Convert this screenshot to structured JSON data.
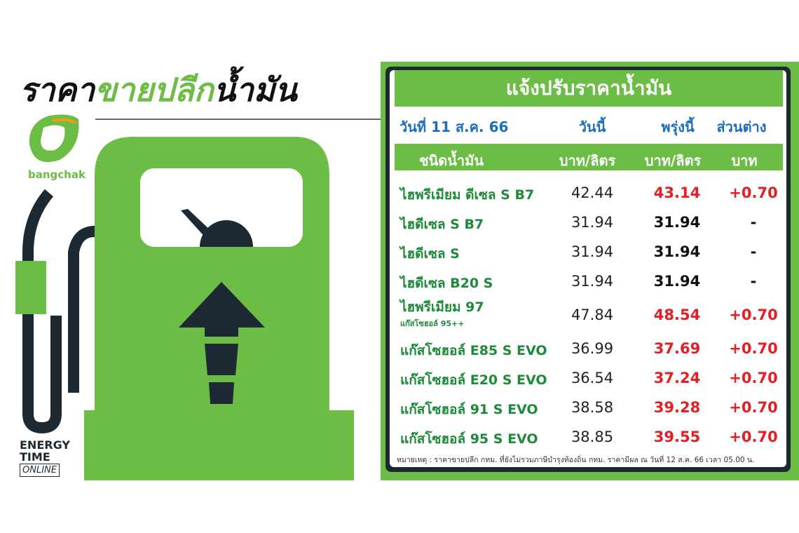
{
  "header": {
    "title_parts": [
      "ราคา",
      "ขายปลีก",
      "น้ำมัน"
    ],
    "brand": "bangchak",
    "publisher": [
      "ENERGY",
      "TIME",
      "ONLINE"
    ]
  },
  "table": {
    "title": "แจ้งปรับราคาน้ำมัน",
    "date": "วันที่ 11 ส.ค. 66",
    "columns": [
      "วันนี้",
      "พรุ่งนี้",
      "ส่วนต่าง"
    ],
    "header_row": [
      "ชนิดน้ำมัน",
      "บาท/ลิตร",
      "บาท/ลิตร",
      "บาท"
    ],
    "rows": [
      {
        "name": "ไฮพรีเมียม ดีเซล S B7",
        "today": "42.44",
        "tomorrow": "43.14",
        "diff": "+0.70",
        "color": "#e31e24"
      },
      {
        "name": "ไฮดีเซล S B7",
        "today": "31.94",
        "tomorrow": "31.94",
        "diff": "-",
        "color": "#111111"
      },
      {
        "name": "ไฮดีเซล S",
        "today": "31.94",
        "tomorrow": "31.94",
        "diff": "-",
        "color": "#111111"
      },
      {
        "name": "ไฮดีเซล B20 S",
        "today": "31.94",
        "tomorrow": "31.94",
        "diff": "-",
        "color": "#111111"
      },
      {
        "name": "ไฮพรีเมียม 97",
        "subname": "แก๊สโซฮอล์ 95++",
        "today": "47.84",
        "tomorrow": "48.54",
        "diff": "+0.70",
        "color": "#e31e24"
      },
      {
        "name": "แก๊สโซฮอล์ E85 S EVO",
        "today": "36.99",
        "tomorrow": "37.69",
        "diff": "+0.70",
        "color": "#e31e24"
      },
      {
        "name": "แก๊สโซฮอล์ E20 S EVO",
        "today": "36.54",
        "tomorrow": "37.24",
        "diff": "+0.70",
        "color": "#e31e24"
      },
      {
        "name": "แก๊สโซฮอล์ 91 S EVO",
        "today": "38.58",
        "tomorrow": "39.28",
        "diff": "+0.70",
        "color": "#e31e24"
      },
      {
        "name": "แก๊สโซฮอล์ 95 S EVO",
        "today": "38.85",
        "tomorrow": "39.55",
        "diff": "+0.70",
        "color": "#e31e24"
      }
    ],
    "note": "หมายเหตุ : ราคาขายปลีก กทม. ที่ยังไม่รวมภาษีบำรุงท้องถิ่น กทม. ราคามีผล ณ วันที่ 12 ส.ค. 66 เวลา 05.00 น."
  }
}
